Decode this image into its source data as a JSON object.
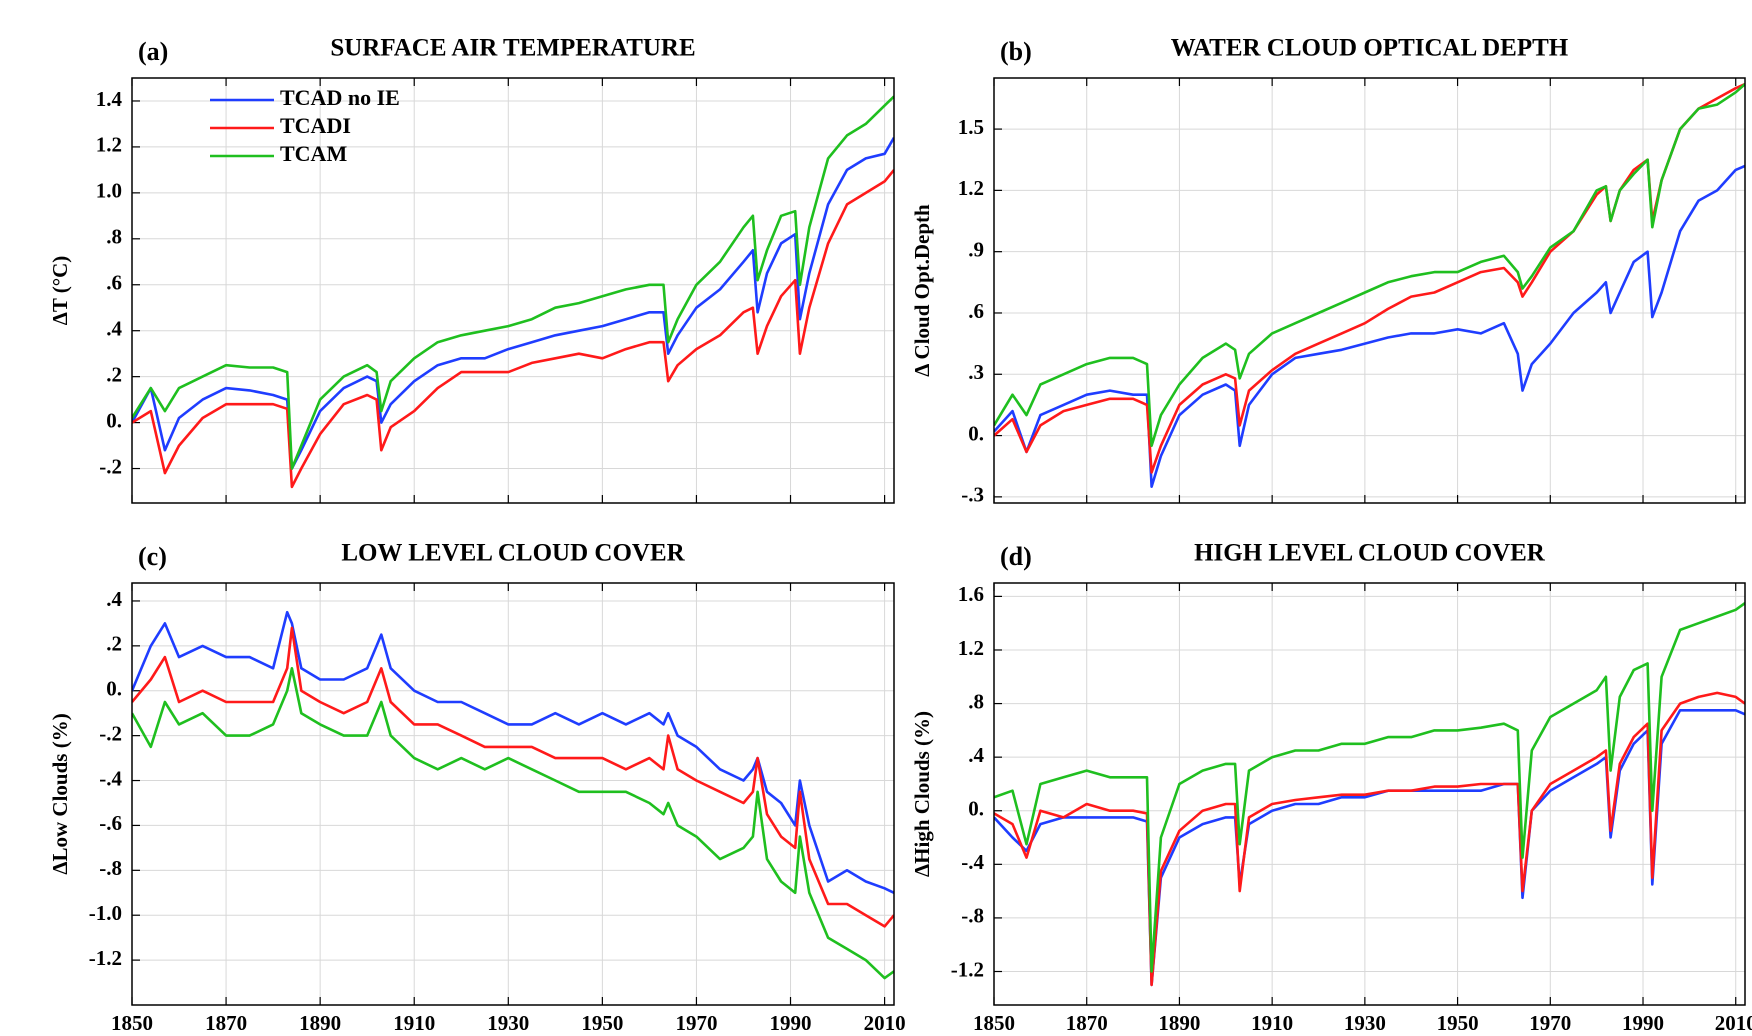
{
  "chart_data": [
    {
      "type": "line",
      "panel_label": "(a)",
      "title": "SURFACE AIR TEMPERATURE",
      "ylabel": "ΔT (°C)",
      "x": [
        1850,
        1854,
        1857,
        1860,
        1865,
        1870,
        1875,
        1880,
        1883,
        1884,
        1886,
        1890,
        1895,
        1900,
        1902,
        1903,
        1905,
        1910,
        1915,
        1920,
        1925,
        1930,
        1935,
        1940,
        1945,
        1950,
        1955,
        1960,
        1963,
        1964,
        1966,
        1970,
        1975,
        1980,
        1982,
        1983,
        1985,
        1988,
        1991,
        1992,
        1994,
        1998,
        2002,
        2006,
        2010,
        2012
      ],
      "xlim": [
        1850,
        2012
      ],
      "xticks": [
        1850,
        1870,
        1890,
        1910,
        1930,
        1950,
        1970,
        1990,
        2010
      ],
      "show_xtick_labels": false,
      "ylim": [
        -0.35,
        1.5
      ],
      "yticks": [
        {
          "value": -0.2,
          "label": "-.2"
        },
        {
          "value": 0,
          "label": "0."
        },
        {
          "value": 0.2,
          "label": ".2"
        },
        {
          "value": 0.4,
          "label": ".4"
        },
        {
          "value": 0.6,
          "label": ".6"
        },
        {
          "value": 0.8,
          "label": ".8"
        },
        {
          "value": 1.0,
          "label": "1.0"
        },
        {
          "value": 1.2,
          "label": "1.2"
        },
        {
          "value": 1.4,
          "label": "1.4"
        }
      ],
      "grid": true,
      "legend": "upper left",
      "series": [
        {
          "name": "TCAD no IE",
          "color": "#1f3dff",
          "values": [
            0.0,
            0.15,
            -0.12,
            0.02,
            0.1,
            0.15,
            0.14,
            0.12,
            0.1,
            -0.2,
            -0.12,
            0.05,
            0.15,
            0.2,
            0.18,
            0.0,
            0.08,
            0.18,
            0.25,
            0.28,
            0.28,
            0.32,
            0.35,
            0.38,
            0.4,
            0.42,
            0.45,
            0.48,
            0.48,
            0.3,
            0.38,
            0.5,
            0.58,
            0.7,
            0.75,
            0.48,
            0.65,
            0.78,
            0.82,
            0.45,
            0.65,
            0.95,
            1.1,
            1.15,
            1.17,
            1.24
          ]
        },
        {
          "name": "TCADI",
          "color": "#ff1a1a",
          "values": [
            0.0,
            0.05,
            -0.22,
            -0.1,
            0.02,
            0.08,
            0.08,
            0.08,
            0.06,
            -0.28,
            -0.2,
            -0.05,
            0.08,
            0.12,
            0.1,
            -0.12,
            -0.02,
            0.05,
            0.15,
            0.22,
            0.22,
            0.22,
            0.26,
            0.28,
            0.3,
            0.28,
            0.32,
            0.35,
            0.35,
            0.18,
            0.25,
            0.32,
            0.38,
            0.48,
            0.5,
            0.3,
            0.42,
            0.55,
            0.62,
            0.3,
            0.5,
            0.78,
            0.95,
            1.0,
            1.05,
            1.1
          ]
        },
        {
          "name": "TCAM",
          "color": "#1fbf1f",
          "values": [
            0.02,
            0.15,
            0.05,
            0.15,
            0.2,
            0.25,
            0.24,
            0.24,
            0.22,
            -0.2,
            -0.1,
            0.1,
            0.2,
            0.25,
            0.22,
            0.05,
            0.18,
            0.28,
            0.35,
            0.38,
            0.4,
            0.42,
            0.45,
            0.5,
            0.52,
            0.55,
            0.58,
            0.6,
            0.6,
            0.35,
            0.45,
            0.6,
            0.7,
            0.85,
            0.9,
            0.62,
            0.75,
            0.9,
            0.92,
            0.6,
            0.85,
            1.15,
            1.25,
            1.3,
            1.38,
            1.42
          ]
        }
      ]
    },
    {
      "type": "line",
      "panel_label": "(b)",
      "title": "WATER CLOUD OPTICAL DEPTH",
      "ylabel": "Δ Cloud Opt.Depth",
      "x": [
        1850,
        1854,
        1857,
        1860,
        1865,
        1870,
        1875,
        1880,
        1883,
        1884,
        1886,
        1890,
        1895,
        1900,
        1902,
        1903,
        1905,
        1910,
        1915,
        1920,
        1925,
        1930,
        1935,
        1940,
        1945,
        1950,
        1955,
        1960,
        1963,
        1964,
        1966,
        1970,
        1975,
        1980,
        1982,
        1983,
        1985,
        1988,
        1991,
        1992,
        1994,
        1998,
        2002,
        2006,
        2010,
        2012
      ],
      "xlim": [
        1850,
        2012
      ],
      "xticks": [
        1850,
        1870,
        1890,
        1910,
        1930,
        1950,
        1970,
        1990,
        2010
      ],
      "show_xtick_labels": false,
      "ylim": [
        -0.33,
        1.75
      ],
      "yticks": [
        {
          "value": -0.3,
          "label": "-.3"
        },
        {
          "value": 0,
          "label": "0."
        },
        {
          "value": 0.3,
          "label": ".3"
        },
        {
          "value": 0.6,
          "label": ".6"
        },
        {
          "value": 0.9,
          "label": ".9"
        },
        {
          "value": 1.2,
          "label": "1.2"
        },
        {
          "value": 1.5,
          "label": "1.5"
        }
      ],
      "grid": true,
      "series": [
        {
          "color": "#1f3dff",
          "values": [
            0.02,
            0.12,
            -0.08,
            0.1,
            0.15,
            0.2,
            0.22,
            0.2,
            0.2,
            -0.25,
            -0.1,
            0.1,
            0.2,
            0.25,
            0.22,
            -0.05,
            0.15,
            0.3,
            0.38,
            0.4,
            0.42,
            0.45,
            0.48,
            0.5,
            0.5,
            0.52,
            0.5,
            0.55,
            0.4,
            0.22,
            0.35,
            0.45,
            0.6,
            0.7,
            0.75,
            0.6,
            0.7,
            0.85,
            0.9,
            0.58,
            0.7,
            1.0,
            1.15,
            1.2,
            1.3,
            1.32
          ]
        },
        {
          "color": "#ff1a1a",
          "values": [
            0.0,
            0.08,
            -0.08,
            0.05,
            0.12,
            0.15,
            0.18,
            0.18,
            0.15,
            -0.18,
            -0.05,
            0.15,
            0.25,
            0.3,
            0.28,
            0.05,
            0.22,
            0.32,
            0.4,
            0.45,
            0.5,
            0.55,
            0.62,
            0.68,
            0.7,
            0.75,
            0.8,
            0.82,
            0.75,
            0.68,
            0.75,
            0.9,
            1.0,
            1.18,
            1.22,
            1.05,
            1.2,
            1.3,
            1.35,
            1.05,
            1.25,
            1.5,
            1.6,
            1.65,
            1.7,
            1.72
          ]
        },
        {
          "color": "#1fbf1f",
          "values": [
            0.05,
            0.2,
            0.1,
            0.25,
            0.3,
            0.35,
            0.38,
            0.38,
            0.35,
            -0.05,
            0.1,
            0.25,
            0.38,
            0.45,
            0.42,
            0.28,
            0.4,
            0.5,
            0.55,
            0.6,
            0.65,
            0.7,
            0.75,
            0.78,
            0.8,
            0.8,
            0.85,
            0.88,
            0.8,
            0.72,
            0.78,
            0.92,
            1.0,
            1.2,
            1.22,
            1.05,
            1.2,
            1.28,
            1.35,
            1.02,
            1.25,
            1.5,
            1.6,
            1.62,
            1.68,
            1.72
          ]
        }
      ]
    },
    {
      "type": "line",
      "panel_label": "(c)",
      "title": "LOW LEVEL CLOUD COVER",
      "ylabel": "ΔLow Clouds (%)",
      "x": [
        1850,
        1854,
        1857,
        1860,
        1865,
        1870,
        1875,
        1880,
        1883,
        1884,
        1886,
        1890,
        1895,
        1900,
        1902,
        1903,
        1905,
        1910,
        1915,
        1920,
        1925,
        1930,
        1935,
        1940,
        1945,
        1950,
        1955,
        1960,
        1963,
        1964,
        1966,
        1970,
        1975,
        1980,
        1982,
        1983,
        1985,
        1988,
        1991,
        1992,
        1994,
        1998,
        2002,
        2006,
        2010,
        2012
      ],
      "xlim": [
        1850,
        2012
      ],
      "xticks": [
        1850,
        1870,
        1890,
        1910,
        1930,
        1950,
        1970,
        1990,
        2010
      ],
      "show_xtick_labels": true,
      "ylim": [
        -1.4,
        0.48
      ],
      "yticks": [
        {
          "value": -1.2,
          "label": "-1.2"
        },
        {
          "value": -1.0,
          "label": "-1.0"
        },
        {
          "value": -0.8,
          "label": "-.8"
        },
        {
          "value": -0.6,
          "label": "-.6"
        },
        {
          "value": -0.4,
          "label": "-.4"
        },
        {
          "value": -0.2,
          "label": "-.2"
        },
        {
          "value": 0,
          "label": "0."
        },
        {
          "value": 0.2,
          "label": ".2"
        },
        {
          "value": 0.4,
          "label": ".4"
        }
      ],
      "grid": true,
      "series": [
        {
          "color": "#1f3dff",
          "values": [
            0.0,
            0.2,
            0.3,
            0.15,
            0.2,
            0.15,
            0.15,
            0.1,
            0.35,
            0.3,
            0.1,
            0.05,
            0.05,
            0.1,
            0.2,
            0.25,
            0.1,
            0.0,
            -0.05,
            -0.05,
            -0.1,
            -0.15,
            -0.15,
            -0.1,
            -0.15,
            -0.1,
            -0.15,
            -0.1,
            -0.15,
            -0.1,
            -0.2,
            -0.25,
            -0.35,
            -0.4,
            -0.35,
            -0.3,
            -0.45,
            -0.5,
            -0.6,
            -0.4,
            -0.6,
            -0.85,
            -0.8,
            -0.85,
            -0.88,
            -0.9
          ]
        },
        {
          "color": "#ff1a1a",
          "values": [
            -0.05,
            0.05,
            0.15,
            -0.05,
            0.0,
            -0.05,
            -0.05,
            -0.05,
            0.1,
            0.28,
            0.0,
            -0.05,
            -0.1,
            -0.05,
            0.05,
            0.1,
            -0.05,
            -0.15,
            -0.15,
            -0.2,
            -0.25,
            -0.25,
            -0.25,
            -0.3,
            -0.3,
            -0.3,
            -0.35,
            -0.3,
            -0.35,
            -0.2,
            -0.35,
            -0.4,
            -0.45,
            -0.5,
            -0.45,
            -0.3,
            -0.55,
            -0.65,
            -0.7,
            -0.45,
            -0.75,
            -0.95,
            -0.95,
            -1.0,
            -1.05,
            -1.0
          ]
        },
        {
          "color": "#1fbf1f",
          "values": [
            -0.1,
            -0.25,
            -0.05,
            -0.15,
            -0.1,
            -0.2,
            -0.2,
            -0.15,
            0.0,
            0.1,
            -0.1,
            -0.15,
            -0.2,
            -0.2,
            -0.1,
            -0.05,
            -0.2,
            -0.3,
            -0.35,
            -0.3,
            -0.35,
            -0.3,
            -0.35,
            -0.4,
            -0.45,
            -0.45,
            -0.45,
            -0.5,
            -0.55,
            -0.5,
            -0.6,
            -0.65,
            -0.75,
            -0.7,
            -0.65,
            -0.45,
            -0.75,
            -0.85,
            -0.9,
            -0.65,
            -0.9,
            -1.1,
            -1.15,
            -1.2,
            -1.28,
            -1.25
          ]
        }
      ]
    },
    {
      "type": "line",
      "panel_label": "(d)",
      "title": "HIGH LEVEL CLOUD COVER",
      "ylabel": "ΔHigh Clouds (%)",
      "x": [
        1850,
        1854,
        1857,
        1860,
        1865,
        1870,
        1875,
        1880,
        1883,
        1884,
        1886,
        1890,
        1895,
        1900,
        1902,
        1903,
        1905,
        1910,
        1915,
        1920,
        1925,
        1930,
        1935,
        1940,
        1945,
        1950,
        1955,
        1960,
        1963,
        1964,
        1966,
        1970,
        1975,
        1980,
        1982,
        1983,
        1985,
        1988,
        1991,
        1992,
        1994,
        1998,
        2002,
        2006,
        2010,
        2012
      ],
      "xlim": [
        1850,
        2012
      ],
      "xticks": [
        1850,
        1870,
        1890,
        1910,
        1930,
        1950,
        1970,
        1990,
        2010
      ],
      "show_xtick_labels": true,
      "ylim": [
        -1.45,
        1.7
      ],
      "yticks": [
        {
          "value": -1.2,
          "label": "-1.2"
        },
        {
          "value": -0.8,
          "label": "-.8"
        },
        {
          "value": -0.4,
          "label": "-.4"
        },
        {
          "value": 0,
          "label": "0."
        },
        {
          "value": 0.4,
          "label": ".4"
        },
        {
          "value": 0.8,
          "label": ".8"
        },
        {
          "value": 1.2,
          "label": "1.2"
        },
        {
          "value": 1.6,
          "label": "1.6"
        }
      ],
      "grid": true,
      "series": [
        {
          "color": "#1f3dff",
          "values": [
            -0.05,
            -0.2,
            -0.3,
            -0.1,
            -0.05,
            -0.05,
            -0.05,
            -0.05,
            -0.08,
            -1.3,
            -0.5,
            -0.2,
            -0.1,
            -0.05,
            -0.05,
            -0.55,
            -0.1,
            0.0,
            0.05,
            0.05,
            0.1,
            0.1,
            0.15,
            0.15,
            0.15,
            0.15,
            0.15,
            0.2,
            0.2,
            -0.65,
            0.0,
            0.15,
            0.25,
            0.35,
            0.4,
            -0.2,
            0.3,
            0.5,
            0.6,
            -0.55,
            0.5,
            0.75,
            0.75,
            0.75,
            0.75,
            0.72
          ]
        },
        {
          "color": "#ff1a1a",
          "values": [
            -0.02,
            -0.1,
            -0.35,
            0.0,
            -0.05,
            0.05,
            0.0,
            0.0,
            -0.02,
            -1.3,
            -0.45,
            -0.15,
            0.0,
            0.05,
            0.05,
            -0.6,
            -0.05,
            0.05,
            0.08,
            0.1,
            0.12,
            0.12,
            0.15,
            0.15,
            0.18,
            0.18,
            0.2,
            0.2,
            0.2,
            -0.6,
            0.0,
            0.2,
            0.3,
            0.4,
            0.45,
            -0.15,
            0.35,
            0.55,
            0.65,
            -0.5,
            0.6,
            0.8,
            0.85,
            0.88,
            0.85,
            0.8
          ]
        },
        {
          "color": "#1fbf1f",
          "values": [
            0.1,
            0.15,
            -0.25,
            0.2,
            0.25,
            0.3,
            0.25,
            0.25,
            0.25,
            -1.2,
            -0.2,
            0.2,
            0.3,
            0.35,
            0.35,
            -0.25,
            0.3,
            0.4,
            0.45,
            0.45,
            0.5,
            0.5,
            0.55,
            0.55,
            0.6,
            0.6,
            0.62,
            0.65,
            0.6,
            -0.35,
            0.45,
            0.7,
            0.8,
            0.9,
            1.0,
            0.3,
            0.85,
            1.05,
            1.1,
            0.0,
            1.0,
            1.35,
            1.4,
            1.45,
            1.5,
            1.55
          ]
        }
      ]
    }
  ]
}
